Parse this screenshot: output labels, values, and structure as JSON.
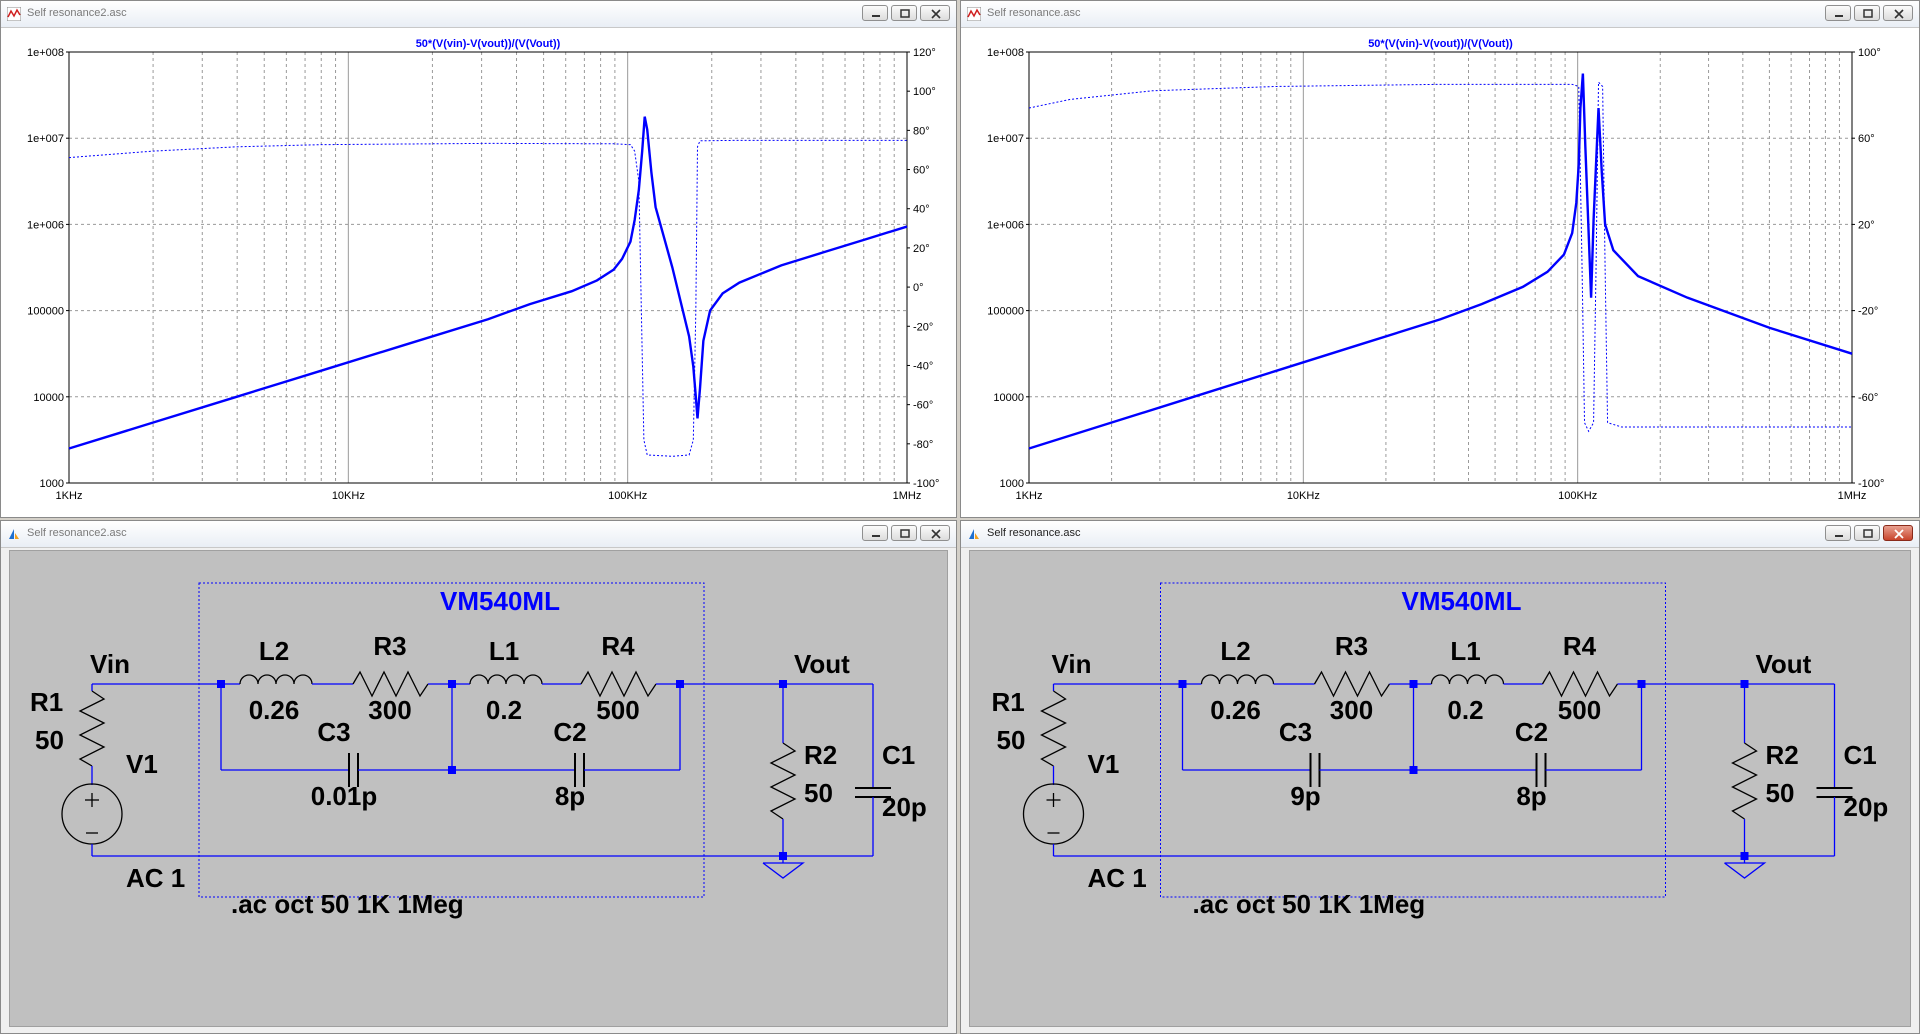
{
  "windows": {
    "plot_left": {
      "title": "Self resonance2.asc"
    },
    "plot_right": {
      "title": "Self resonance.asc"
    },
    "sch_left": {
      "title": "Self resonance2.asc"
    },
    "sch_right": {
      "title": "Self resonance.asc"
    }
  },
  "plots": {
    "left": {
      "trace_label": "50*(V(vin)-V(vout))/(V(Vout))",
      "y_left_ticks": [
        "1e+008",
        "1e+007",
        "1e+006",
        "100000",
        "10000",
        "1000"
      ],
      "y_right_ticks": [
        "120°",
        "100°",
        "80°",
        "60°",
        "40°",
        "20°",
        "0°",
        "-20°",
        "-40°",
        "-60°",
        "-80°",
        "-100°"
      ],
      "x_ticks": [
        "1KHz",
        "10KHz",
        "100KHz",
        "1MHz"
      ]
    },
    "right": {
      "trace_label": "50*(V(vin)-V(vout))/(V(Vout))",
      "y_left_ticks": [
        "1e+008",
        "1e+007",
        "1e+006",
        "100000",
        "10000",
        "1000"
      ],
      "y_right_ticks": [
        "100°",
        "60°",
        "20°",
        "-20°",
        "-60°",
        "-100°"
      ],
      "x_ticks": [
        "1KHz",
        "10KHz",
        "100KHz",
        "1MHz"
      ]
    }
  },
  "schematics": {
    "left": {
      "block_name": "VM540ML",
      "vin": "Vin",
      "vout": "Vout",
      "r1": "R1",
      "r1_val": "50",
      "v1": "V1",
      "ac": "AC 1",
      "l2": "L2",
      "l2_val": "0.26",
      "r3": "R3",
      "r3_val": "300",
      "l1": "L1",
      "l1_val": "0.2",
      "r4": "R4",
      "r4_val": "500",
      "c3": "C3",
      "c3_val": "0.01p",
      "c2": "C2",
      "c2_val": "8p",
      "r2": "R2",
      "r2_val": "50",
      "c1": "C1",
      "c1_val": "20p",
      "directive": ".ac oct 50 1K 1Meg"
    },
    "right": {
      "block_name": "VM540ML",
      "vin": "Vin",
      "vout": "Vout",
      "r1": "R1",
      "r1_val": "50",
      "v1": "V1",
      "ac": "AC 1",
      "l2": "L2",
      "l2_val": "0.26",
      "r3": "R3",
      "r3_val": "300",
      "l1": "L1",
      "l1_val": "0.2",
      "r4": "R4",
      "r4_val": "500",
      "c3": "C3",
      "c3_val": "9p",
      "c2": "C2",
      "c2_val": "8p",
      "r2": "R2",
      "r2_val": "50",
      "c1": "C1",
      "c1_val": "20p",
      "directive": ".ac oct 50 1K 1Meg"
    }
  },
  "colors": {
    "trace": "#0000ff",
    "grid": "#a0a0a0",
    "wire": "#0000ff",
    "sch_bg": "#c0c0c0"
  }
}
